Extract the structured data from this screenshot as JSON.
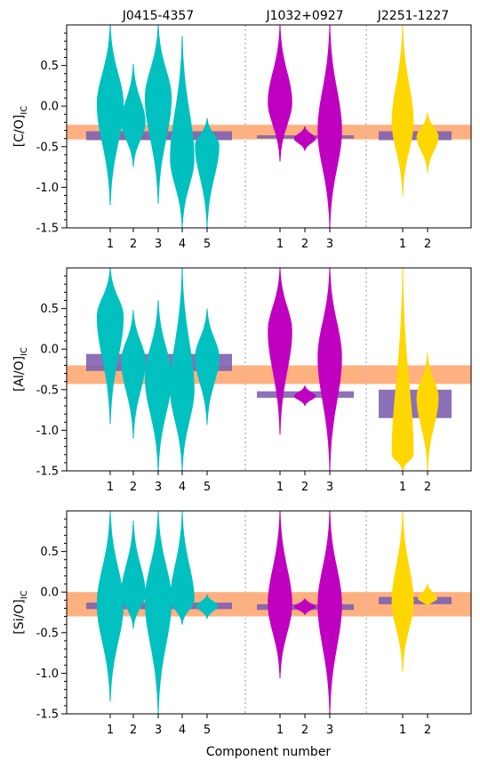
{
  "colors": {
    "J0415-4357": "#00c0c0",
    "J1032+0927": "#c000c0",
    "J2251-1227": "#ffd700",
    "orange_band": "#ffb080",
    "purple_bar": "#8060b0",
    "separator": "#bbbbbb"
  },
  "groups": [
    {
      "name": "J0415-4357",
      "components": [
        "1",
        "2",
        "3",
        "4",
        "5"
      ]
    },
    {
      "name": "J1032+0927",
      "components": [
        "1",
        "2",
        "3"
      ]
    },
    {
      "name": "J2251-1227",
      "components": [
        "1",
        "2"
      ]
    }
  ],
  "xlabel": "Component number",
  "chart_data": [
    {
      "type": "violin",
      "ylabel_main": "[C/O]",
      "ylabel_sub": "IC",
      "ylim": [
        -1.5,
        1.0
      ],
      "yticks": [
        "-1.5",
        "-1.0",
        "-0.5",
        "0.0",
        "0.5"
      ],
      "orange_band": [
        -0.41,
        -0.23
      ],
      "purple_bars": [
        [
          -0.42,
          -0.31
        ],
        [
          -0.4,
          -0.36
        ],
        [
          -0.42,
          -0.31
        ]
      ],
      "violins": [
        [
          {
            "min": -1.22,
            "max": 1.0,
            "peak": 0.02,
            "width": 0.55
          },
          {
            "min": -0.75,
            "max": 0.52,
            "peak": -0.2,
            "width": 0.5
          },
          {
            "min": -1.2,
            "max": 1.0,
            "peak": 0.1,
            "width": 0.55
          },
          {
            "min": -1.5,
            "max": 0.86,
            "peak": -0.65,
            "width": 0.5
          },
          {
            "min": -1.5,
            "max": -0.15,
            "peak": -0.48,
            "width": 0.5
          }
        ],
        [
          {
            "min": -0.68,
            "max": 1.0,
            "peak": 0.05,
            "width": 0.5
          },
          {
            "min": -0.55,
            "max": -0.25,
            "peak": -0.4,
            "width": 0.45
          },
          {
            "min": -1.5,
            "max": 1.0,
            "peak": -0.3,
            "width": 0.5
          }
        ],
        [
          {
            "min": -1.1,
            "max": 1.0,
            "peak": -0.2,
            "width": 0.45
          },
          {
            "min": -0.82,
            "max": -0.08,
            "peak": -0.38,
            "width": 0.45
          }
        ]
      ]
    },
    {
      "type": "violin",
      "ylabel_main": "[Al/O]",
      "ylabel_sub": "IC",
      "ylim": [
        -1.5,
        1.0
      ],
      "yticks": [
        "-1.5",
        "-1.0",
        "-0.5",
        "0.0",
        "0.5"
      ],
      "orange_band": [
        -0.43,
        -0.2
      ],
      "purple_bars": [
        [
          -0.27,
          -0.06
        ],
        [
          -0.6,
          -0.52
        ],
        [
          -0.85,
          -0.5
        ]
      ],
      "violins": [
        [
          {
            "min": -0.92,
            "max": 1.0,
            "peak": 0.4,
            "width": 0.55
          },
          {
            "min": -1.1,
            "max": 0.48,
            "peak": -0.15,
            "width": 0.5
          },
          {
            "min": -1.5,
            "max": 0.6,
            "peak": -0.35,
            "width": 0.55
          },
          {
            "min": -1.5,
            "max": 1.0,
            "peak": -0.5,
            "width": 0.5
          },
          {
            "min": -0.93,
            "max": 0.5,
            "peak": -0.1,
            "width": 0.5
          }
        ],
        [
          {
            "min": -1.05,
            "max": 1.0,
            "peak": 0.22,
            "width": 0.5
          },
          {
            "min": -0.7,
            "max": -0.45,
            "peak": -0.58,
            "width": 0.45
          },
          {
            "min": -1.5,
            "max": 1.0,
            "peak": -0.1,
            "width": 0.5
          }
        ],
        [
          {
            "min": -1.5,
            "max": 1.0,
            "peak": -1.3,
            "width": 0.45
          },
          {
            "min": -1.5,
            "max": -0.05,
            "peak": -0.6,
            "width": 0.45
          }
        ]
      ]
    },
    {
      "type": "violin",
      "ylabel_main": "[Si/O]",
      "ylabel_sub": "IC",
      "ylim": [
        -1.5,
        1.0
      ],
      "yticks": [
        "-1.5",
        "-1.0",
        "-0.5",
        "0.0",
        "0.5"
      ],
      "orange_band": [
        -0.3,
        0.0
      ],
      "purple_bars": [
        [
          -0.21,
          -0.13
        ],
        [
          -0.22,
          -0.15
        ],
        [
          -0.15,
          -0.06
        ]
      ],
      "violins": [
        [
          {
            "min": -1.35,
            "max": 1.0,
            "peak": -0.15,
            "width": 0.55
          },
          {
            "min": -0.45,
            "max": 0.88,
            "peak": -0.02,
            "width": 0.5
          },
          {
            "min": -1.5,
            "max": 1.0,
            "peak": -0.1,
            "width": 0.55
          },
          {
            "min": -0.4,
            "max": 1.0,
            "peak": -0.1,
            "width": 0.5
          },
          {
            "min": -0.33,
            "max": -0.03,
            "peak": -0.17,
            "width": 0.45
          }
        ],
        [
          {
            "min": -1.06,
            "max": 1.0,
            "peak": -0.15,
            "width": 0.5
          },
          {
            "min": -0.28,
            "max": -0.08,
            "peak": -0.18,
            "width": 0.45
          },
          {
            "min": -1.5,
            "max": 1.0,
            "peak": -0.15,
            "width": 0.5
          }
        ],
        [
          {
            "min": -0.98,
            "max": 1.0,
            "peak": -0.12,
            "width": 0.45
          },
          {
            "min": -0.16,
            "max": 0.1,
            "peak": -0.08,
            "width": 0.4
          }
        ]
      ]
    }
  ]
}
